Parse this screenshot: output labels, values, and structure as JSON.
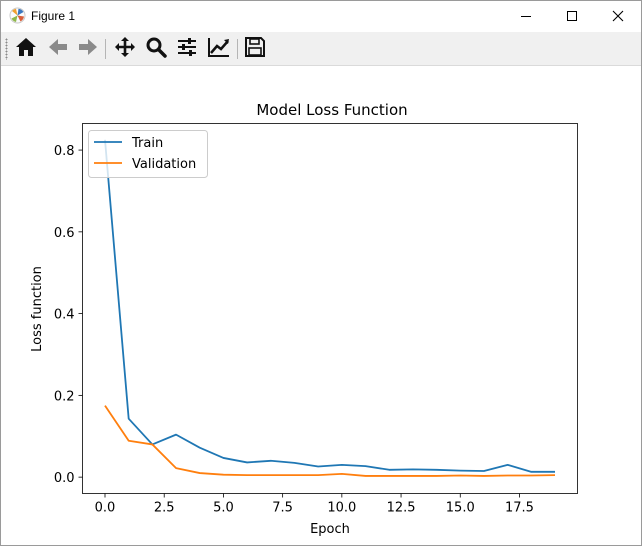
{
  "window": {
    "title": "Figure 1",
    "icon": "matplotlib-logo-icon",
    "controls": [
      "minimize-icon",
      "maximize-icon",
      "close-icon"
    ]
  },
  "toolbar": {
    "buttons": [
      {
        "icon": "home-icon",
        "name": "Home"
      },
      {
        "icon": "back-arrow-icon",
        "name": "Back"
      },
      {
        "icon": "forward-arrow-icon",
        "name": "Forward"
      },
      {
        "icon": "pan-move-icon",
        "name": "Pan"
      },
      {
        "icon": "zoom-magnifier-icon",
        "name": "Zoom"
      },
      {
        "icon": "configure-subplots-icon",
        "name": "Subplots"
      },
      {
        "icon": "edit-axis-icon",
        "name": "Customize"
      },
      {
        "icon": "save-floppy-icon",
        "name": "Save"
      }
    ]
  },
  "colors": {
    "train": "#1f77b4",
    "validation": "#ff7f0e",
    "toolbar_bg": "#f0f0f0"
  },
  "chart_data": {
    "type": "line",
    "title": "Model Loss Function",
    "xlabel": "Epoch",
    "ylabel": "Loss function",
    "xlim": [
      -0.95,
      19.95
    ],
    "ylim": [
      -0.04,
      0.865
    ],
    "xticks": [
      0,
      2.5,
      5,
      7.5,
      10,
      12.5,
      15,
      17.5
    ],
    "xtick_labels": [
      "0.0",
      "2.5",
      "5.0",
      "7.5",
      "10.0",
      "12.5",
      "15.0",
      "17.5"
    ],
    "yticks": [
      0,
      0.2,
      0.4,
      0.6,
      0.8
    ],
    "ytick_labels": [
      "0.0",
      "0.2",
      "0.4",
      "0.6",
      "0.8"
    ],
    "grid": false,
    "legend": "top-left",
    "x": [
      0,
      1,
      2,
      3,
      4,
      5,
      6,
      7,
      8,
      9,
      10,
      11,
      12,
      13,
      14,
      15,
      16,
      17,
      18,
      19
    ],
    "series": [
      {
        "name": "Train",
        "values": [
          0.825,
          0.143,
          0.08,
          0.104,
          0.072,
          0.047,
          0.036,
          0.04,
          0.035,
          0.026,
          0.03,
          0.027,
          0.018,
          0.019,
          0.018,
          0.016,
          0.015,
          0.03,
          0.013,
          0.013
        ]
      },
      {
        "name": "Validation",
        "values": [
          0.175,
          0.089,
          0.08,
          0.022,
          0.01,
          0.006,
          0.005,
          0.005,
          0.005,
          0.005,
          0.008,
          0.003,
          0.003,
          0.003,
          0.003,
          0.004,
          0.003,
          0.004,
          0.004,
          0.005
        ]
      }
    ]
  }
}
